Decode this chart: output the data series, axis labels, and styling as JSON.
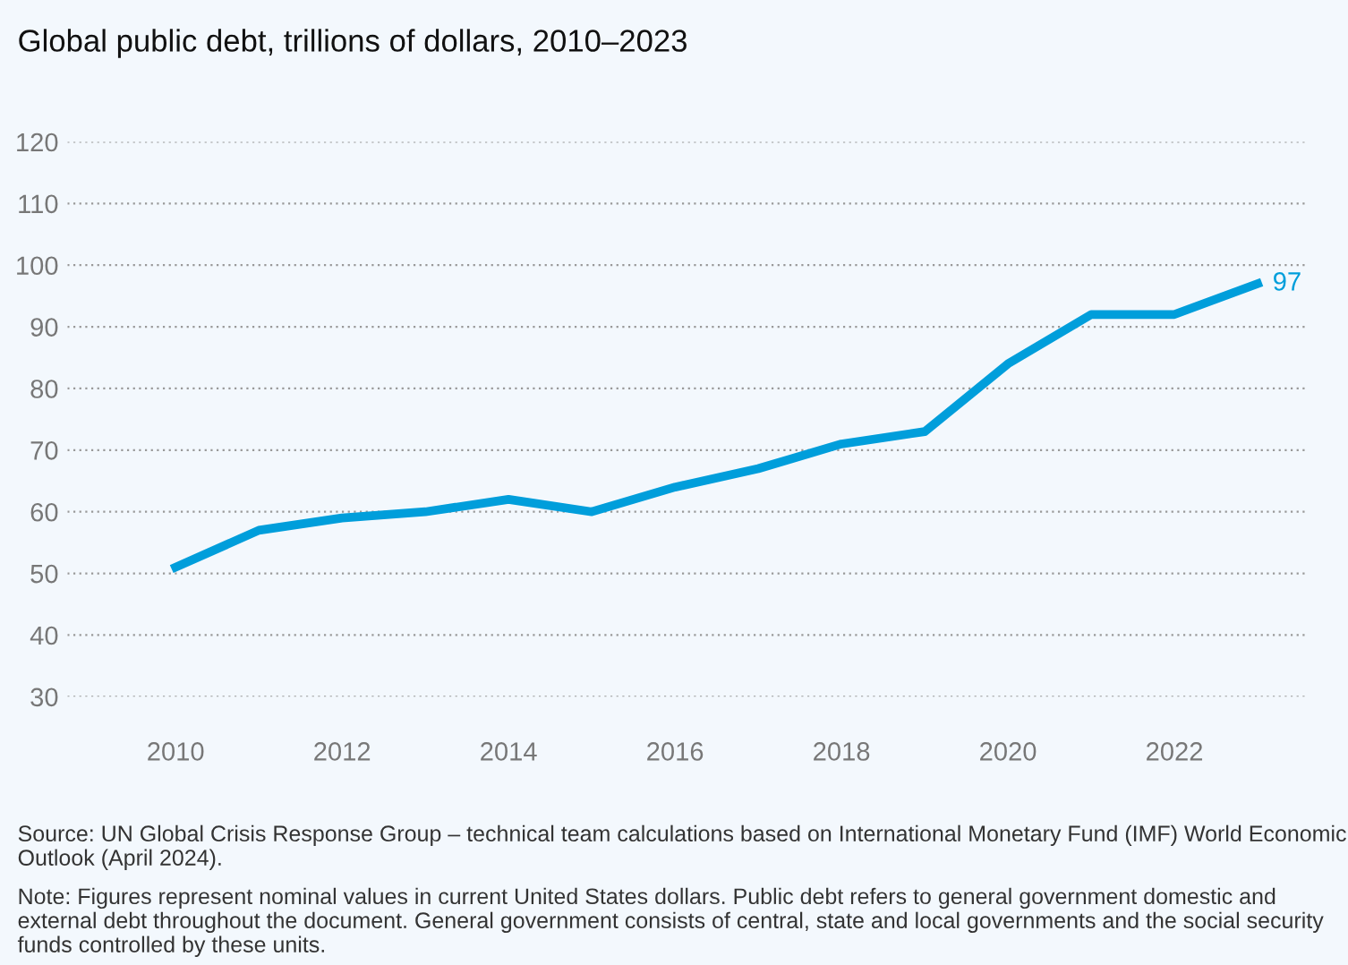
{
  "chart_data": {
    "type": "line",
    "title": "Global public debt, trillions of dollars, 2010–2023",
    "x": [
      2010,
      2011,
      2012,
      2013,
      2014,
      2015,
      2016,
      2017,
      2018,
      2019,
      2020,
      2021,
      2022,
      2023
    ],
    "series": [
      {
        "color": "#009edb",
        "values": [
          51,
          57,
          59,
          60,
          62,
          60,
          64,
          67,
          71,
          73,
          84,
          92,
          92,
          97
        ],
        "value_labels": [
          null,
          null,
          null,
          null,
          null,
          null,
          null,
          null,
          null,
          null,
          null,
          null,
          null,
          "97"
        ]
      }
    ],
    "xlim": [
      2008.7,
      2023.6
    ],
    "xticks": [
      2010,
      2012,
      2014,
      2016,
      2018,
      2020,
      2022
    ],
    "ylim": [
      30,
      120
    ],
    "yticks": [
      30,
      40,
      50,
      60,
      70,
      80,
      90,
      100,
      110,
      120
    ],
    "grid": "y",
    "marker": "none",
    "line_style": "solid",
    "legend": false,
    "annotations": [
      "Source: UN Global Crisis Response Group – technical team calculations based on International Monetary Fund (IMF) World Economic Outlook (April 2024).",
      "Note: Figures represent nominal values in current United States dollars. Public debt refers to general government domestic and external debt throughout the document. General government consists of central, state and local governments and the social security funds controlled by these units."
    ]
  }
}
